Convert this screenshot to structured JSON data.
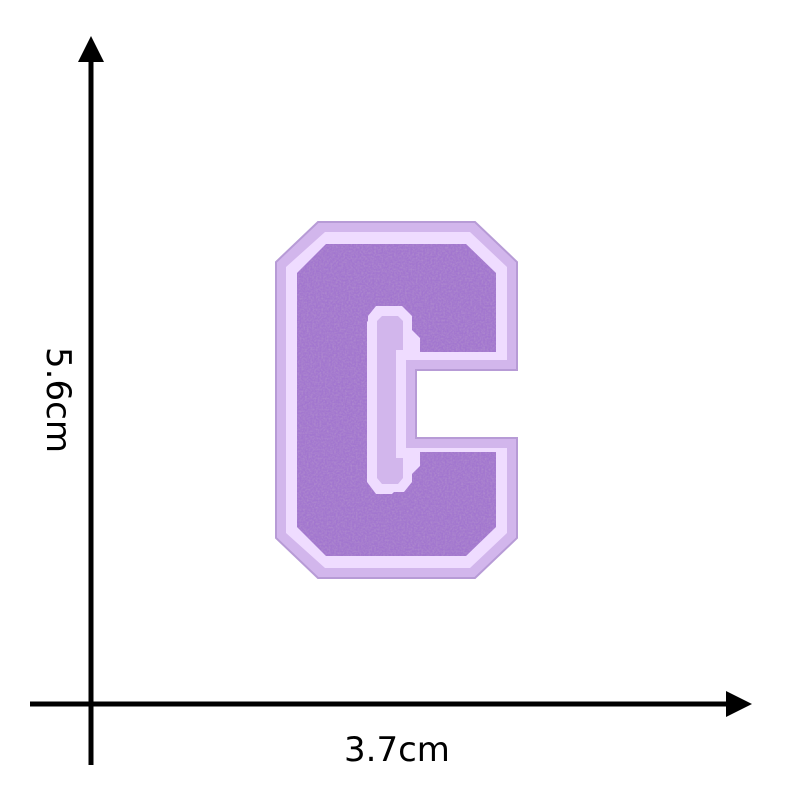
{
  "dimensions": {
    "width_label": "3.7cm",
    "height_label": "5.6cm"
  },
  "patch": {
    "letter": "C",
    "colors": {
      "felt": "#d2b6ec",
      "felt_edge": "#b79bd6",
      "stitch_border": "#efdcff",
      "chenille": "#a276cf",
      "chenille_shadow": "#8c5fbc",
      "chenille_highlight": "#b791dc"
    }
  },
  "colors": {
    "background": "#ffffff",
    "axis": "#000000"
  }
}
